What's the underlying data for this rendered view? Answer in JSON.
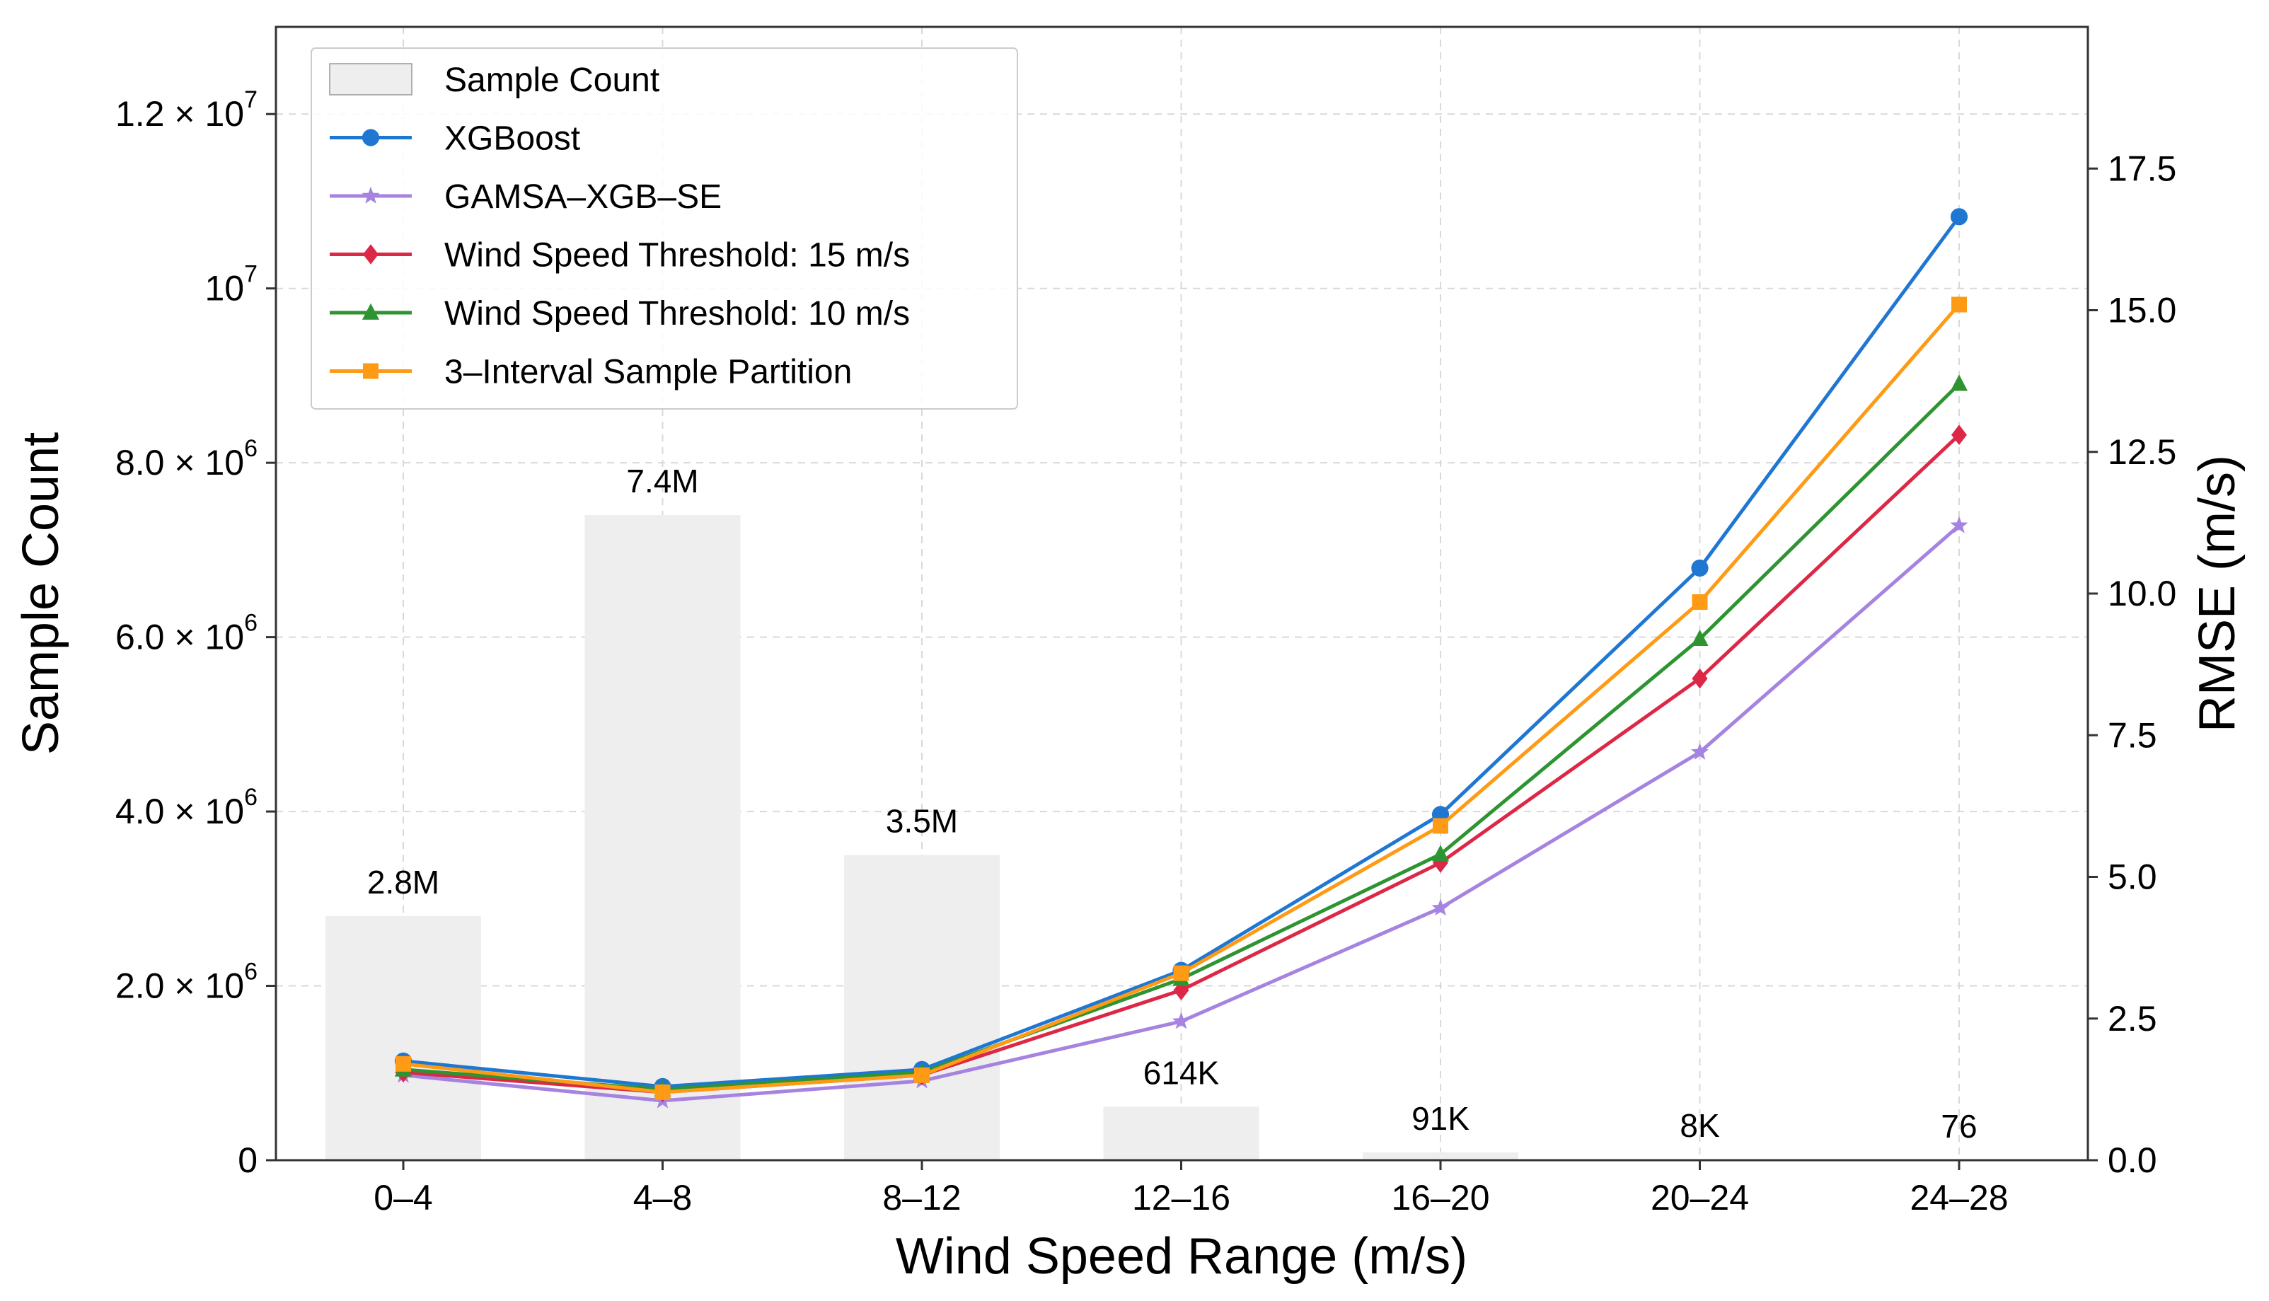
{
  "chart_data": {
    "type": "bar+line",
    "categories": [
      "0–4",
      "4–8",
      "8–12",
      "12–16",
      "16–20",
      "20–24",
      "24–28"
    ],
    "xlabel": "Wind Speed Range (m/s)",
    "ylabel_left": "Sample Count",
    "ylabel_right": "RMSE (m/s)",
    "ylim_left": [
      0,
      13000000
    ],
    "ylim_right": [
      0,
      20
    ],
    "grid": true,
    "legend_position": "top-left",
    "left_ticks": [
      {
        "value": 0,
        "mantissa": "0",
        "exp": ""
      },
      {
        "value": 2000000,
        "mantissa": "2.0 × 10",
        "exp": "6"
      },
      {
        "value": 4000000,
        "mantissa": "4.0 × 10",
        "exp": "6"
      },
      {
        "value": 6000000,
        "mantissa": "6.0 × 10",
        "exp": "6"
      },
      {
        "value": 8000000,
        "mantissa": "8.0 × 10",
        "exp": "6"
      },
      {
        "value": 10000000,
        "mantissa": "10",
        "exp": "7"
      },
      {
        "value": 12000000,
        "mantissa": "1.2 × 10",
        "exp": "7"
      }
    ],
    "right_ticks": [
      "0.0",
      "2.5",
      "5.0",
      "7.5",
      "10.0",
      "12.5",
      "15.0",
      "17.5"
    ],
    "bars": {
      "name": "Sample Count",
      "values": [
        2800000,
        7400000,
        3500000,
        614000,
        91000,
        8000,
        76
      ],
      "labels": [
        "2.8M",
        "7.4M",
        "3.5M",
        "614K",
        "91K",
        "8K",
        "76"
      ],
      "color": "#eeeeee"
    },
    "series": [
      {
        "name": "XGBoost",
        "color": "#1f77d2",
        "marker": "circle",
        "values": [
          1.75,
          1.3,
          1.6,
          3.35,
          6.1,
          10.45,
          16.65
        ]
      },
      {
        "name": "GAMSA–XGB–SE",
        "color": "#a683e0",
        "marker": "star",
        "values": [
          1.5,
          1.05,
          1.4,
          2.45,
          4.45,
          7.2,
          11.2
        ]
      },
      {
        "name": "Wind Speed Threshold: 15 m/s",
        "color": "#dc2846",
        "marker": "diamond",
        "values": [
          1.55,
          1.2,
          1.5,
          3.0,
          5.25,
          8.5,
          12.8
        ]
      },
      {
        "name": "Wind Speed Threshold: 10 m/s",
        "color": "#2e9432",
        "marker": "triangle",
        "values": [
          1.6,
          1.25,
          1.55,
          3.2,
          5.4,
          9.2,
          13.7
        ]
      },
      {
        "name": "3–Interval Sample Partition",
        "color": "#ff9a14",
        "marker": "square",
        "values": [
          1.7,
          1.2,
          1.5,
          3.3,
          5.9,
          9.85,
          15.1
        ]
      }
    ]
  }
}
